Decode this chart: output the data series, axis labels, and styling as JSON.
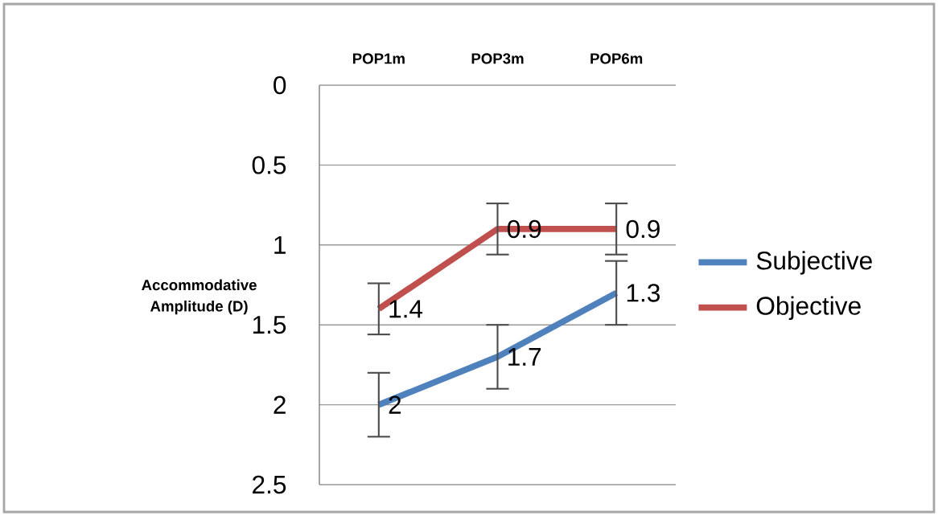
{
  "chart_data": {
    "type": "line",
    "ylabel": "Accommodative Amplitude (D)",
    "categories": [
      "POP1m",
      "POP3m",
      "POP6m"
    ],
    "series": [
      {
        "name": "Subjective",
        "color": "#4f81bd",
        "values": [
          2,
          1.7,
          1.3
        ],
        "errors": [
          0.2,
          0.2,
          0.2
        ]
      },
      {
        "name": "Objective",
        "color": "#c0504d",
        "values": [
          1.4,
          0.9,
          0.9
        ],
        "errors": [
          0.16,
          0.16,
          0.16
        ]
      }
    ],
    "ylim": [
      2.5,
      0
    ],
    "yticks": [
      0,
      0.5,
      1,
      1.5,
      2,
      2.5
    ],
    "grid": "y",
    "legend": "right",
    "data_labels": true,
    "marker": "none"
  }
}
